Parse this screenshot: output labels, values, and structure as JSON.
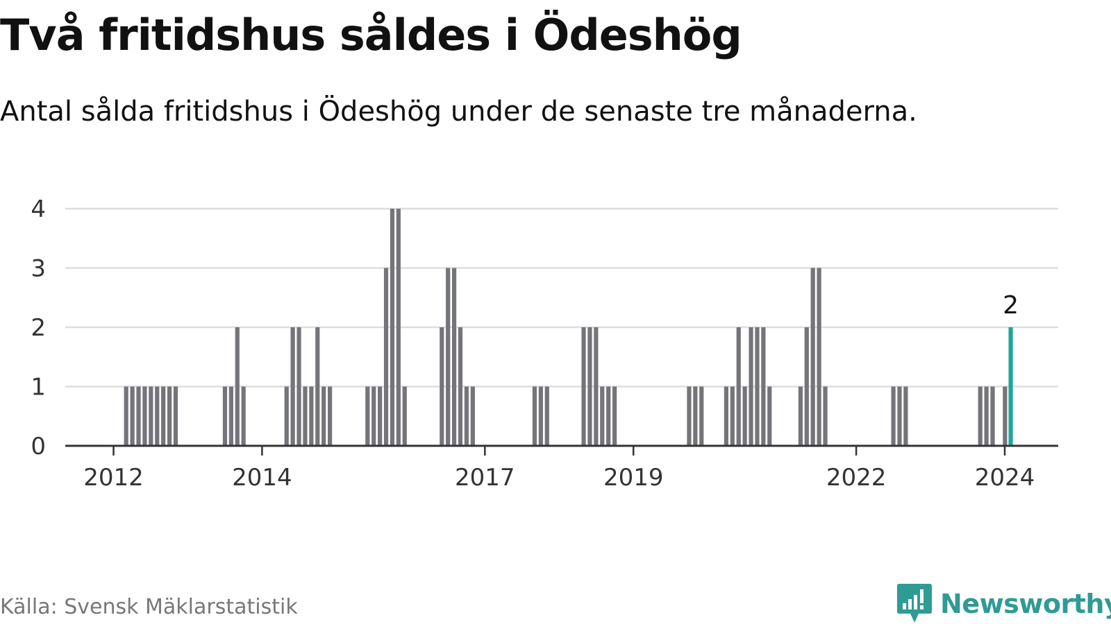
{
  "title": "Två fritidshus såldes i Ödeshög",
  "subtitle": "Antal sålda fritidshus i Ödeshög under de senaste tre månaderna.",
  "source": "Källa: Svensk Mäklarstatistik",
  "brand": "Newsworthy",
  "colors": {
    "bar": "#75747a",
    "highlight": "#1fa59b",
    "grid": "#dddddd",
    "axis": "#333333",
    "brand": "#2e9b94"
  },
  "chart_data": {
    "type": "bar",
    "title": "Två fritidshus såldes i Ödeshög",
    "xlabel": "",
    "ylabel": "",
    "ylim": [
      0,
      4
    ],
    "y_ticks": [
      "0",
      "1",
      "2",
      "3",
      "4"
    ],
    "x_ticks": [
      {
        "label": "2012",
        "value": 2012.0
      },
      {
        "label": "2014",
        "value": 2014.0
      },
      {
        "label": "2017",
        "value": 2017.0
      },
      {
        "label": "2019",
        "value": 2019.0
      },
      {
        "label": "2022",
        "value": 2022.0
      },
      {
        "label": "2024",
        "value": 2024.0
      }
    ],
    "x_domain": [
      2011.35,
      2024.72
    ],
    "bar_step_years": 0.0833,
    "bar_width_years": 0.058,
    "groups": [
      {
        "start": 2012.17,
        "values": [
          1,
          1,
          1,
          1,
          1,
          1,
          1,
          1,
          1
        ]
      },
      {
        "start": 2013.5,
        "values": [
          1,
          1,
          2,
          1
        ]
      },
      {
        "start": 2014.33,
        "values": [
          1,
          2,
          2,
          1,
          1,
          2,
          1,
          1
        ]
      },
      {
        "start": 2015.42,
        "values": [
          1,
          1,
          1,
          3,
          4,
          4,
          1
        ]
      },
      {
        "start": 2016.42,
        "values": [
          2,
          3,
          3,
          2,
          1,
          1
        ]
      },
      {
        "start": 2017.67,
        "values": [
          1,
          1,
          1
        ]
      },
      {
        "start": 2018.33,
        "values": [
          2,
          2,
          2,
          1,
          1,
          1
        ]
      },
      {
        "start": 2019.75,
        "values": [
          1,
          1,
          1
        ]
      },
      {
        "start": 2020.25,
        "values": [
          1,
          1,
          2,
          1,
          2,
          2,
          2,
          1
        ]
      },
      {
        "start": 2021.25,
        "values": [
          1,
          2,
          3,
          3,
          1
        ]
      },
      {
        "start": 2022.5,
        "values": [
          1,
          1,
          1
        ]
      },
      {
        "start": 2023.67,
        "values": [
          1,
          1,
          1,
          0,
          1
        ]
      }
    ],
    "highlight": {
      "x": 2024.08,
      "value": 2,
      "label": "2"
    }
  }
}
